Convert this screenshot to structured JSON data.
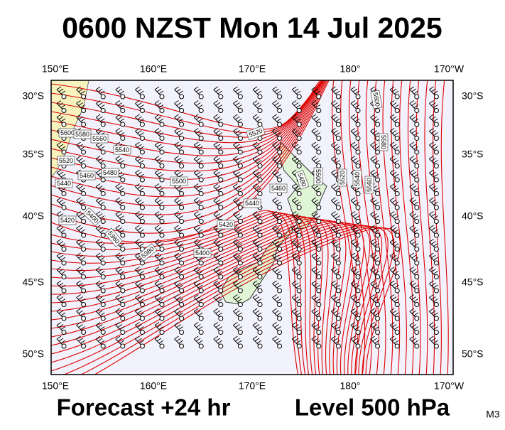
{
  "header": {
    "title": "0600 NZST Mon 14 Jul 2025"
  },
  "map": {
    "top_longitude_labels": [
      "150°E",
      "160°E",
      "170°E",
      "180°",
      "170°W"
    ],
    "bottom_longitude_labels": [
      "150°E",
      "160°E",
      "170°E",
      "180°",
      "170°W"
    ],
    "left_latitude_labels": [
      "30°S",
      "35°S",
      "40°S",
      "45°S",
      "50°S"
    ],
    "right_latitude_labels": [
      "30°S",
      "35°S",
      "40°S",
      "45°S",
      "50°S"
    ],
    "contour_labels": [
      "5600",
      "5580",
      "5560",
      "5540",
      "5520",
      "5460",
      "5480",
      "5440",
      "5500",
      "5520",
      "5460",
      "5440",
      "5420",
      "5400",
      "5380",
      "5420",
      "5400",
      "5360",
      "5500",
      "5480",
      "5520",
      "5540",
      "5560",
      "5580",
      "5600"
    ]
  },
  "footer": {
    "forecast": "Forecast +24 hr",
    "level": "Level 500 hPa",
    "model": "M3"
  }
}
